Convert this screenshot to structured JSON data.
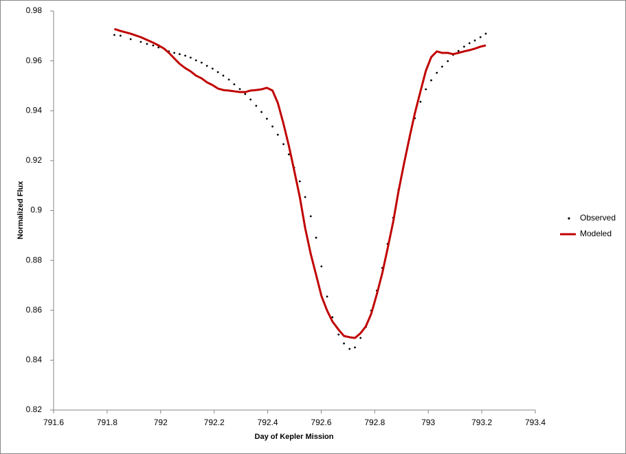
{
  "chart_data": {
    "type": "scatter",
    "x_label": "Day of Kepler Mission",
    "y_label": "Normalized Flux",
    "x": [
      791.827,
      791.85,
      791.888,
      791.926,
      791.949,
      791.972,
      791.992,
      792.013,
      792.031,
      792.051,
      792.071,
      792.092,
      792.112,
      792.132,
      792.153,
      792.173,
      792.194,
      792.214,
      792.234,
      792.255,
      792.275,
      792.296,
      792.316,
      792.336,
      792.357,
      792.377,
      792.397,
      792.418,
      792.438,
      792.459,
      792.479,
      792.499,
      792.52,
      792.54,
      792.561,
      792.581,
      792.601,
      792.622,
      792.642,
      792.665,
      792.685,
      792.706,
      792.726,
      792.747,
      792.767,
      792.787,
      792.808,
      792.828,
      792.848,
      792.869,
      792.889,
      792.91,
      792.93,
      792.95,
      792.971,
      792.991,
      793.011,
      793.032,
      793.052,
      793.073,
      793.093,
      793.113,
      793.134,
      793.154,
      793.174,
      793.195,
      793.215
    ],
    "series": [
      {
        "name": "Observed",
        "color": "#000000",
        "mark": "dot",
        "values": [
          0.9704,
          0.9701,
          0.9687,
          0.9676,
          0.9668,
          0.9662,
          0.9654,
          0.9649,
          0.9638,
          0.9632,
          0.9627,
          0.9621,
          0.9613,
          0.9602,
          0.9593,
          0.958,
          0.9569,
          0.9555,
          0.9541,
          0.9525,
          0.9506,
          0.9487,
          0.9467,
          0.9445,
          0.942,
          0.9395,
          0.9368,
          0.9337,
          0.9304,
          0.9266,
          0.9225,
          0.9172,
          0.9117,
          0.9054,
          0.8977,
          0.8891,
          0.8776,
          0.8655,
          0.8572,
          0.8503,
          0.8467,
          0.8445,
          0.8451,
          0.8489,
          0.8533,
          0.8599,
          0.8679,
          0.877,
          0.8866,
          0.8971,
          0.9084,
          0.9191,
          0.9288,
          0.937,
          0.9436,
          0.9486,
          0.9522,
          0.9552,
          0.9577,
          0.9599,
          0.9624,
          0.964,
          0.9657,
          0.9671,
          0.9682,
          0.9695,
          0.9709
        ]
      },
      {
        "name": "Modeled",
        "color": "#c00000",
        "mark": "line",
        "values": [
          0.9728,
          0.972,
          0.9709,
          0.9695,
          0.9684,
          0.9673,
          0.9662,
          0.9649,
          0.9632,
          0.961,
          0.9588,
          0.9571,
          0.9558,
          0.9541,
          0.953,
          0.9514,
          0.9503,
          0.9489,
          0.9483,
          0.9481,
          0.9478,
          0.9475,
          0.9475,
          0.9481,
          0.9483,
          0.9486,
          0.9492,
          0.9481,
          0.9431,
          0.9348,
          0.926,
          0.9161,
          0.9054,
          0.893,
          0.8825,
          0.8742,
          0.8657,
          0.8599,
          0.8555,
          0.8522,
          0.8497,
          0.8492,
          0.8489,
          0.8508,
          0.8536,
          0.8586,
          0.8665,
          0.8748,
          0.8847,
          0.8955,
          0.9078,
          0.9191,
          0.9293,
          0.939,
          0.9478,
          0.956,
          0.9615,
          0.9638,
          0.9632,
          0.9632,
          0.9627,
          0.9632,
          0.9638,
          0.9643,
          0.9649,
          0.9657,
          0.9662
        ]
      }
    ],
    "xlim": [
      791.6,
      793.4
    ],
    "xticks": [
      791.6,
      791.8,
      792,
      792.2,
      792.4,
      792.6,
      792.8,
      793,
      793.2,
      793.4
    ],
    "ylim": [
      0.82,
      0.98
    ],
    "yticks": [
      0.82,
      0.84,
      0.86,
      0.88,
      0.9,
      0.92,
      0.94,
      0.96,
      0.98
    ],
    "grid": false,
    "legend": "right"
  }
}
